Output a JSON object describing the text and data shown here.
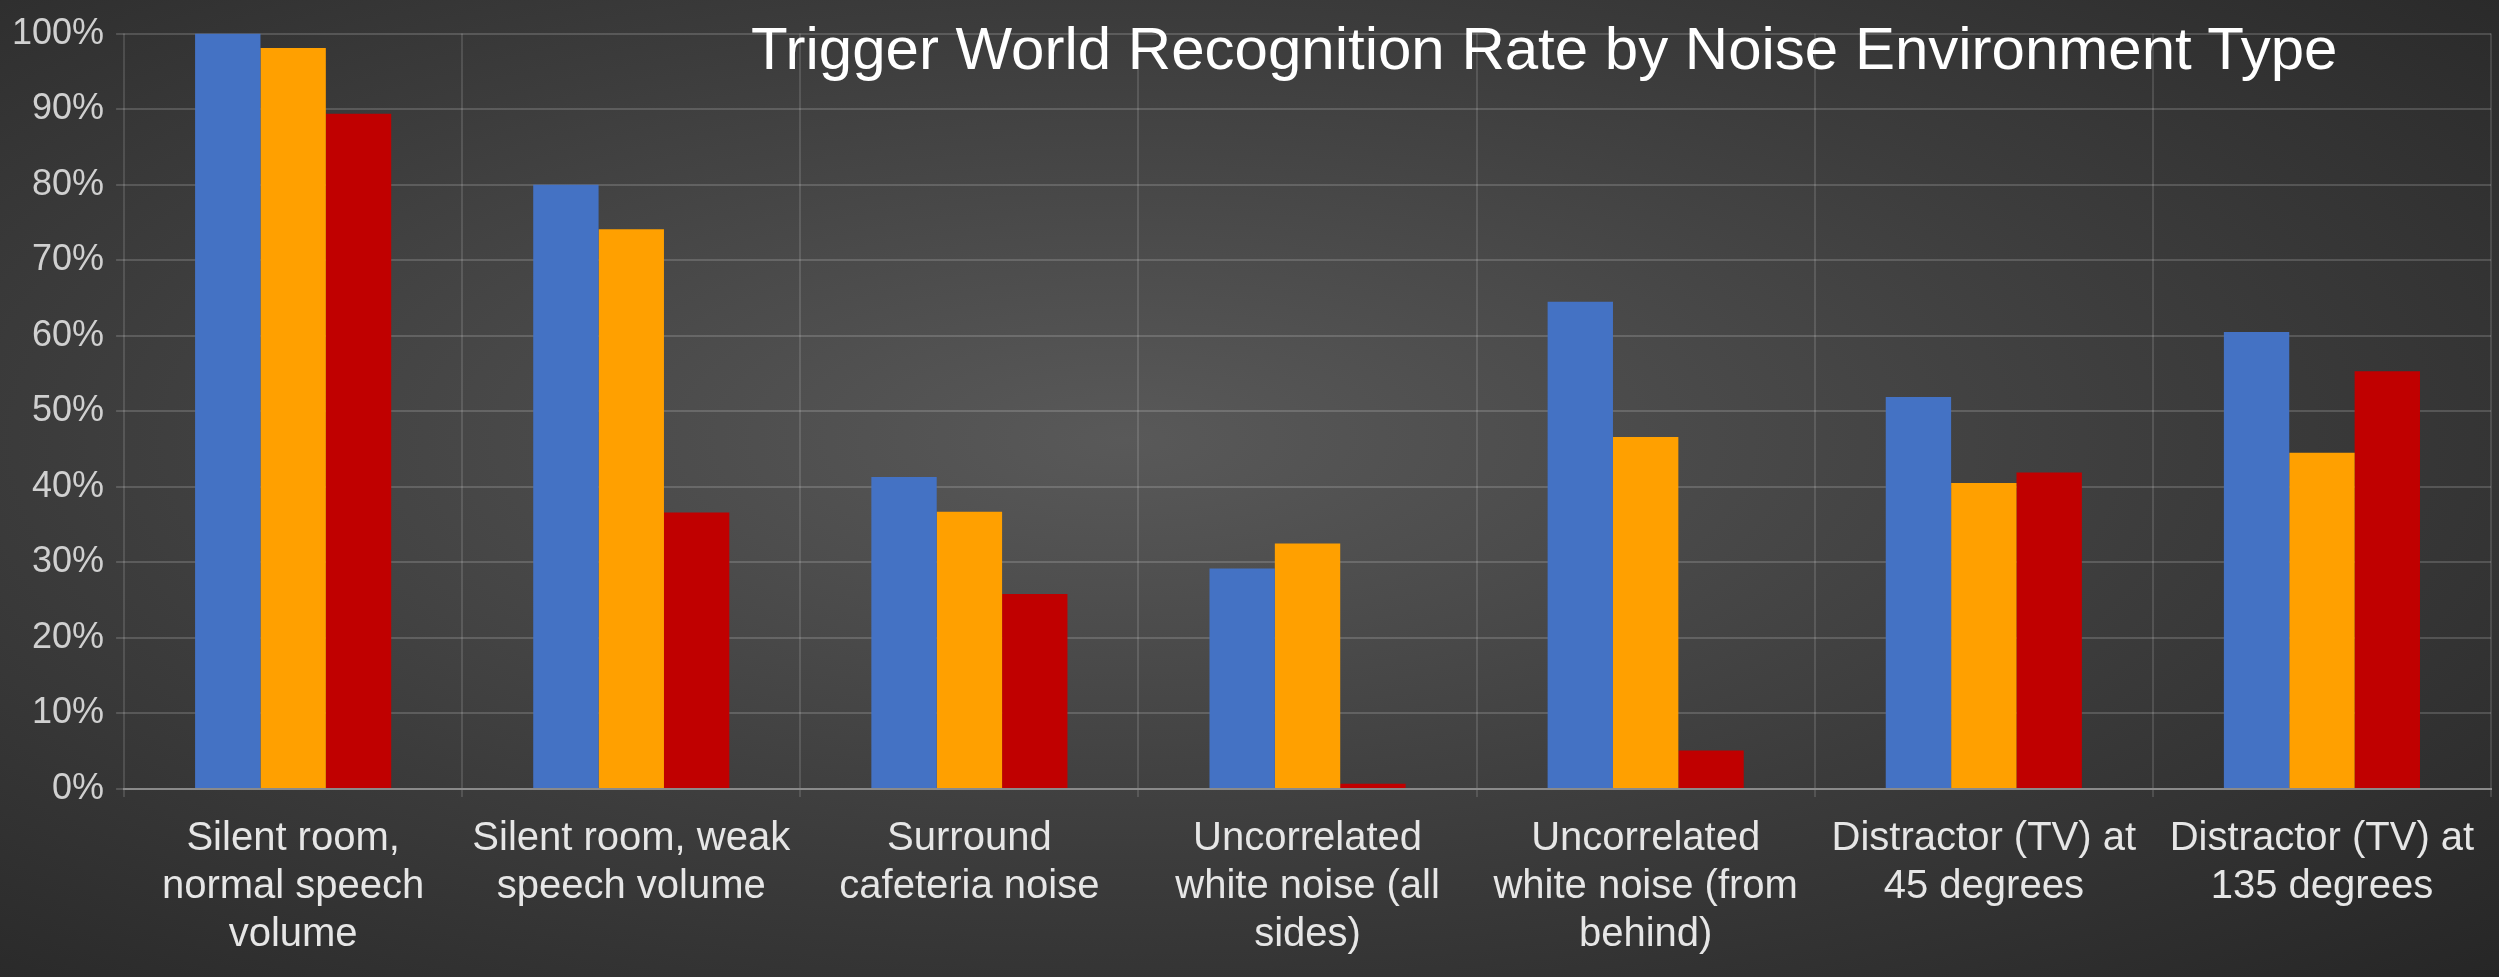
{
  "chart_data": {
    "type": "bar",
    "title": "Trigger World Recognition Rate by Noise Environment Type",
    "categories": [
      "Silent room, normal speech volume",
      "Silent room, weak speech volume",
      "Surround cafeteria noise",
      "Uncorrelated white noise (all sides)",
      "Uncorrelated white noise (from behind)",
      "Distractor (TV) at 45 degrees",
      "Distractor (TV) at 135 degrees"
    ],
    "series": [
      {
        "color": "#4472c4",
        "values": [
          100,
          80,
          41.3,
          29.2,
          64.5,
          51.9,
          60.5
        ]
      },
      {
        "color": "#ffa000",
        "values": [
          98.1,
          74.1,
          36.7,
          32.5,
          46.6,
          40.5,
          44.5
        ]
      },
      {
        "color": "#c00000",
        "values": [
          89.4,
          36.6,
          25.8,
          0.7,
          5.1,
          41.9,
          55.3
        ]
      }
    ],
    "ylim": [
      0,
      100
    ],
    "yticks": [
      {
        "value": 0,
        "label": "0%"
      },
      {
        "value": 10,
        "label": "10%"
      },
      {
        "value": 20,
        "label": "20%"
      },
      {
        "value": 30,
        "label": "30%"
      },
      {
        "value": 40,
        "label": "40%"
      },
      {
        "value": 50,
        "label": "50%"
      },
      {
        "value": 60,
        "label": "60%"
      },
      {
        "value": 70,
        "label": "70%"
      },
      {
        "value": 80,
        "label": "80%"
      },
      {
        "value": 90,
        "label": "90%"
      },
      {
        "value": 100,
        "label": "100%"
      }
    ],
    "grid": true,
    "legend": false
  }
}
